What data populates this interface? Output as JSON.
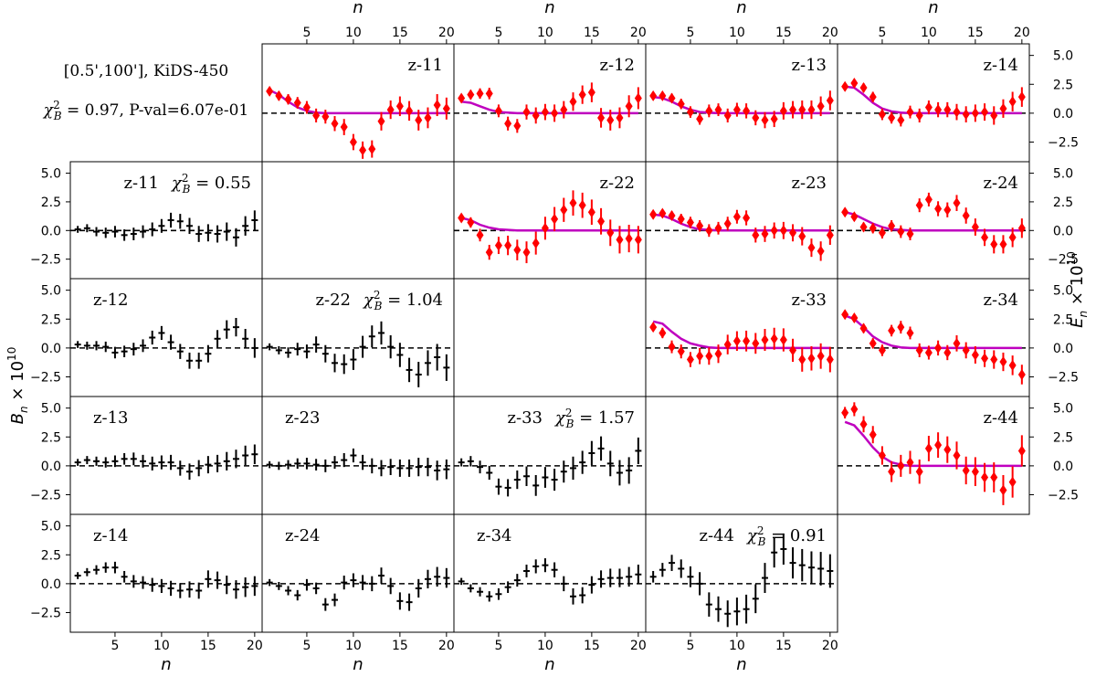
{
  "header": {
    "line1": "[0.5',100'],  KiDS-450",
    "line2_prefix": "χ",
    "line2_sup": "2",
    "line2_sub": "B",
    "line2_rest": " = 0.97, P-val=6.07e-01"
  },
  "axis_labels": {
    "n": "n",
    "e_prefix": "E",
    "e_sub": "n",
    "e_rest": " × 10",
    "e_sup": "10",
    "b_prefix": "B",
    "b_sub": "n",
    "b_rest": " × 10",
    "b_sup": "10"
  },
  "chart_data": {
    "type": "scatter",
    "x": [
      1,
      2,
      3,
      4,
      5,
      6,
      7,
      8,
      9,
      10,
      11,
      12,
      13,
      14,
      15,
      16,
      17,
      18,
      19,
      20
    ],
    "xlim": [
      0.2,
      20.8
    ],
    "xticks": [
      5,
      10,
      15,
      20
    ],
    "ylim": [
      -4.2,
      6.0
    ],
    "yticks": [
      -2.5,
      0.0,
      2.5,
      5.0
    ],
    "ytick_labels": [
      "−2.5",
      "0.0",
      "2.5",
      "5.0"
    ],
    "colors": {
      "E": "#ff0000",
      "B": "#000000",
      "model": "#bf00bf",
      "zero": "#000000"
    },
    "E_modes": [
      {
        "label": "z-11",
        "values": [
          1.9,
          1.5,
          1.2,
          0.9,
          0.5,
          -0.2,
          -0.3,
          -0.9,
          -1.2,
          -2.5,
          -3.2,
          -3.1,
          -0.7,
          0.3,
          0.6,
          0.2,
          -0.6,
          -0.4,
          0.7,
          0.4
        ],
        "errors": [
          0.35,
          0.4,
          0.45,
          0.5,
          0.55,
          0.6,
          0.6,
          0.65,
          0.7,
          0.7,
          0.75,
          0.75,
          0.8,
          0.8,
          0.85,
          0.85,
          0.9,
          0.9,
          0.95,
          0.95
        ],
        "model": [
          2.0,
          1.6,
          1.0,
          0.5,
          0.2,
          0.05,
          0,
          0,
          0,
          0,
          0,
          0,
          0,
          0,
          0,
          0,
          0,
          0,
          0,
          0
        ]
      },
      {
        "label": "z-12",
        "values": [
          1.3,
          1.6,
          1.7,
          1.7,
          0.2,
          -0.9,
          -1.1,
          0.1,
          -0.2,
          0.1,
          0.0,
          0.3,
          1.0,
          1.6,
          1.8,
          -0.4,
          -0.6,
          -0.4,
          0.6,
          1.3
        ],
        "errors": [
          0.35,
          0.4,
          0.45,
          0.5,
          0.55,
          0.6,
          0.6,
          0.65,
          0.7,
          0.7,
          0.75,
          0.75,
          0.8,
          0.8,
          0.85,
          0.85,
          0.9,
          0.9,
          0.95,
          0.95
        ],
        "model": [
          1.0,
          0.9,
          0.6,
          0.3,
          0.1,
          0.05,
          0,
          0,
          0,
          0,
          0,
          0,
          0,
          0,
          0,
          0,
          0,
          0,
          0,
          0
        ]
      },
      {
        "label": "z-13",
        "values": [
          1.5,
          1.5,
          1.3,
          0.8,
          0.1,
          -0.5,
          0.2,
          0.3,
          -0.2,
          0.3,
          0.2,
          -0.4,
          -0.6,
          -0.5,
          0.2,
          0.3,
          0.3,
          0.3,
          0.6,
          1.1
        ],
        "errors": [
          0.3,
          0.35,
          0.4,
          0.45,
          0.5,
          0.5,
          0.55,
          0.55,
          0.6,
          0.6,
          0.65,
          0.65,
          0.7,
          0.7,
          0.75,
          0.75,
          0.8,
          0.8,
          0.85,
          0.85
        ],
        "model": [
          1.4,
          1.3,
          1.0,
          0.6,
          0.3,
          0.1,
          0.05,
          0,
          0,
          0,
          0,
          0,
          0,
          0,
          0,
          0,
          0,
          0,
          0,
          0
        ]
      },
      {
        "label": "z-14",
        "values": [
          2.3,
          2.6,
          2.2,
          1.4,
          -0.1,
          -0.4,
          -0.6,
          0.1,
          -0.2,
          0.5,
          0.3,
          0.3,
          0.1,
          -0.1,
          0.0,
          0.1,
          -0.2,
          0.4,
          1.0,
          1.4
        ],
        "errors": [
          0.3,
          0.35,
          0.4,
          0.45,
          0.5,
          0.5,
          0.55,
          0.55,
          0.6,
          0.6,
          0.65,
          0.65,
          0.7,
          0.7,
          0.75,
          0.75,
          0.8,
          0.8,
          0.85,
          0.85
        ],
        "model": [
          2.3,
          2.2,
          1.6,
          0.9,
          0.4,
          0.15,
          0.05,
          0,
          0,
          0,
          0,
          0,
          0,
          0,
          0,
          0,
          0,
          0,
          0,
          0
        ]
      },
      {
        "label": "z-22",
        "values": [
          1.1,
          0.7,
          -0.4,
          -1.9,
          -1.3,
          -1.3,
          -1.7,
          -1.9,
          -1.1,
          0.2,
          1.0,
          1.8,
          2.4,
          2.2,
          1.6,
          0.8,
          -0.2,
          -0.8,
          -0.7,
          -0.8
        ],
        "errors": [
          0.35,
          0.45,
          0.55,
          0.65,
          0.75,
          0.85,
          0.9,
          0.95,
          1.0,
          1.0,
          1.05,
          1.05,
          1.1,
          1.1,
          1.1,
          1.15,
          1.15,
          1.2,
          1.2,
          1.2
        ],
        "model": [
          1.1,
          0.9,
          0.5,
          0.25,
          0.1,
          0.05,
          0,
          0,
          0,
          0,
          0,
          0,
          0,
          0,
          0,
          0,
          0,
          0,
          0,
          0
        ]
      },
      {
        "label": "z-23",
        "values": [
          1.4,
          1.5,
          1.3,
          1.0,
          0.7,
          0.4,
          0.0,
          0.2,
          0.6,
          1.2,
          1.1,
          -0.4,
          -0.3,
          0.0,
          0.0,
          -0.2,
          -0.5,
          -1.5,
          -1.8,
          -0.4
        ],
        "errors": [
          0.3,
          0.35,
          0.4,
          0.45,
          0.5,
          0.5,
          0.55,
          0.55,
          0.6,
          0.6,
          0.65,
          0.65,
          0.7,
          0.7,
          0.75,
          0.75,
          0.8,
          0.8,
          0.85,
          0.85
        ],
        "model": [
          1.4,
          1.3,
          1.0,
          0.6,
          0.3,
          0.1,
          0.05,
          0,
          0,
          0,
          0,
          0,
          0,
          0,
          0,
          0,
          0,
          0,
          0,
          0
        ]
      },
      {
        "label": "z-24",
        "values": [
          1.6,
          1.2,
          0.3,
          0.2,
          -0.2,
          0.4,
          -0.1,
          -0.3,
          2.2,
          2.7,
          1.9,
          1.8,
          2.4,
          1.3,
          0.3,
          -0.6,
          -1.2,
          -1.2,
          -0.6,
          0.2
        ],
        "errors": [
          0.3,
          0.35,
          0.4,
          0.45,
          0.5,
          0.5,
          0.55,
          0.55,
          0.6,
          0.6,
          0.65,
          0.65,
          0.7,
          0.7,
          0.75,
          0.75,
          0.8,
          0.8,
          0.85,
          0.85
        ],
        "model": [
          1.6,
          1.4,
          1.0,
          0.6,
          0.3,
          0.1,
          0.05,
          0,
          0,
          0,
          0,
          0,
          0,
          0,
          0,
          0,
          0,
          0,
          0,
          0
        ]
      },
      {
        "label": "z-33",
        "values": [
          1.8,
          1.3,
          0.1,
          -0.3,
          -1.0,
          -0.7,
          -0.7,
          -0.5,
          0.3,
          0.6,
          0.6,
          0.4,
          0.7,
          0.8,
          0.7,
          -0.2,
          -1.0,
          -0.9,
          -0.7,
          -1.0
        ],
        "errors": [
          0.35,
          0.45,
          0.55,
          0.6,
          0.65,
          0.7,
          0.75,
          0.8,
          0.85,
          0.85,
          0.9,
          0.9,
          0.95,
          0.95,
          1.0,
          1.0,
          1.05,
          1.05,
          1.1,
          1.1
        ],
        "model": [
          2.3,
          2.1,
          1.4,
          0.8,
          0.4,
          0.2,
          0.05,
          0,
          0,
          0,
          0,
          0,
          0,
          0,
          0,
          0,
          0,
          0,
          0,
          0
        ]
      },
      {
        "label": "z-34",
        "values": [
          2.9,
          2.6,
          1.7,
          0.4,
          -0.2,
          1.5,
          1.8,
          1.3,
          -0.2,
          -0.4,
          0.0,
          -0.4,
          0.4,
          -0.2,
          -0.6,
          -0.9,
          -1.0,
          -1.2,
          -1.5,
          -2.3
        ],
        "errors": [
          0.3,
          0.35,
          0.4,
          0.45,
          0.5,
          0.5,
          0.55,
          0.55,
          0.6,
          0.6,
          0.65,
          0.65,
          0.7,
          0.7,
          0.75,
          0.75,
          0.8,
          0.8,
          0.85,
          0.85
        ],
        "model": [
          2.8,
          2.5,
          1.8,
          1.0,
          0.5,
          0.2,
          0.05,
          0,
          0,
          0,
          0,
          0,
          0,
          0,
          0,
          0,
          0,
          0,
          0,
          0
        ]
      },
      {
        "label": "z-44",
        "values": [
          4.6,
          4.9,
          3.6,
          2.7,
          0.9,
          -0.5,
          0.0,
          0.3,
          -0.5,
          1.5,
          1.8,
          1.4,
          0.9,
          -0.4,
          -0.5,
          -1.0,
          -1.0,
          -2.1,
          -1.4,
          1.3
        ],
        "errors": [
          0.5,
          0.6,
          0.7,
          0.75,
          0.8,
          0.9,
          0.95,
          1.0,
          1.05,
          1.1,
          1.1,
          1.15,
          1.2,
          1.2,
          1.25,
          1.25,
          1.3,
          1.3,
          1.35,
          1.35
        ],
        "model": [
          3.8,
          3.5,
          2.6,
          1.6,
          0.8,
          0.3,
          0.1,
          0,
          0,
          0,
          0,
          0,
          0,
          0,
          0,
          0,
          0,
          0,
          0,
          0
        ]
      }
    ],
    "B_modes": [
      {
        "label": "z-11",
        "chi2": "0.55",
        "values": [
          0.1,
          0.2,
          -0.1,
          -0.2,
          -0.1,
          -0.4,
          -0.3,
          -0.1,
          0.1,
          0.4,
          0.9,
          0.8,
          0.4,
          -0.3,
          -0.2,
          -0.3,
          -0.1,
          -0.6,
          0.4,
          0.9
        ],
        "errors": [
          0.3,
          0.35,
          0.4,
          0.45,
          0.5,
          0.5,
          0.55,
          0.55,
          0.6,
          0.6,
          0.65,
          0.65,
          0.7,
          0.7,
          0.75,
          0.75,
          0.8,
          0.8,
          0.85,
          0.85
        ]
      },
      {
        "label": "z-12",
        "chi2": "",
        "values": [
          0.3,
          0.2,
          0.2,
          0.1,
          -0.4,
          -0.3,
          -0.1,
          0.2,
          0.9,
          1.3,
          0.5,
          -0.3,
          -1.1,
          -1.1,
          -0.5,
          0.8,
          1.6,
          1.8,
          0.8,
          0.0
        ],
        "errors": [
          0.3,
          0.35,
          0.4,
          0.45,
          0.5,
          0.5,
          0.55,
          0.55,
          0.6,
          0.6,
          0.65,
          0.65,
          0.7,
          0.7,
          0.75,
          0.75,
          0.8,
          0.8,
          0.85,
          0.85
        ]
      },
      {
        "label": "z-13",
        "chi2": "",
        "values": [
          0.3,
          0.5,
          0.4,
          0.3,
          0.4,
          0.6,
          0.6,
          0.4,
          0.2,
          0.3,
          0.3,
          -0.2,
          -0.5,
          -0.2,
          0.1,
          0.2,
          0.4,
          0.6,
          0.9,
          1.0
        ],
        "errors": [
          0.3,
          0.35,
          0.4,
          0.45,
          0.5,
          0.5,
          0.55,
          0.55,
          0.6,
          0.6,
          0.65,
          0.65,
          0.7,
          0.7,
          0.75,
          0.75,
          0.8,
          0.8,
          0.85,
          0.85
        ]
      },
      {
        "label": "z-14",
        "chi2": "",
        "values": [
          0.7,
          1.0,
          1.2,
          1.4,
          1.4,
          0.6,
          0.2,
          0.1,
          -0.1,
          -0.2,
          -0.4,
          -0.6,
          -0.5,
          -0.6,
          0.4,
          0.3,
          -0.1,
          -0.5,
          -0.3,
          -0.2
        ],
        "errors": [
          0.3,
          0.35,
          0.4,
          0.45,
          0.5,
          0.5,
          0.55,
          0.55,
          0.6,
          0.6,
          0.65,
          0.65,
          0.7,
          0.7,
          0.75,
          0.75,
          0.8,
          0.8,
          0.85,
          0.85
        ]
      },
      {
        "label": "z-22",
        "chi2": "1.04",
        "values": [
          0.1,
          -0.2,
          -0.4,
          -0.1,
          -0.3,
          0.3,
          -0.5,
          -1.3,
          -1.4,
          -1.0,
          0.1,
          1.0,
          1.3,
          0.1,
          -0.6,
          -1.9,
          -2.3,
          -1.3,
          -0.8,
          -1.7
        ],
        "errors": [
          0.3,
          0.35,
          0.45,
          0.55,
          0.6,
          0.7,
          0.75,
          0.8,
          0.85,
          0.9,
          0.95,
          0.95,
          1.0,
          1.0,
          1.05,
          1.05,
          1.1,
          1.1,
          1.15,
          1.15
        ]
      },
      {
        "label": "z-23",
        "chi2": "",
        "values": [
          0.1,
          0.0,
          0.1,
          0.2,
          0.2,
          0.1,
          0.0,
          0.3,
          0.5,
          0.9,
          0.3,
          0.0,
          -0.2,
          -0.1,
          -0.2,
          -0.2,
          -0.1,
          -0.1,
          -0.4,
          -0.3
        ],
        "errors": [
          0.3,
          0.35,
          0.4,
          0.45,
          0.5,
          0.5,
          0.55,
          0.55,
          0.6,
          0.6,
          0.65,
          0.65,
          0.7,
          0.7,
          0.75,
          0.75,
          0.8,
          0.8,
          0.85,
          0.85
        ]
      },
      {
        "label": "z-33",
        "chi2": "1.57",
        "values": [
          0.3,
          0.4,
          -0.1,
          -0.6,
          -1.8,
          -1.9,
          -1.2,
          -0.9,
          -1.7,
          -1.0,
          -1.2,
          -0.5,
          -0.2,
          0.3,
          1.1,
          1.5,
          0.2,
          -0.6,
          -0.4,
          1.3
        ],
        "errors": [
          0.35,
          0.45,
          0.55,
          0.6,
          0.7,
          0.75,
          0.8,
          0.85,
          0.9,
          0.9,
          0.95,
          0.95,
          1.0,
          1.0,
          1.05,
          1.05,
          1.1,
          1.1,
          1.15,
          1.15
        ]
      },
      {
        "label": "z-24",
        "chi2": "",
        "values": [
          0.1,
          -0.2,
          -0.6,
          -1.0,
          -0.1,
          -0.4,
          -1.8,
          -1.4,
          0.1,
          0.3,
          0.1,
          0.0,
          0.7,
          -0.2,
          -1.5,
          -1.6,
          -0.4,
          0.4,
          0.6,
          0.5
        ],
        "errors": [
          0.3,
          0.35,
          0.4,
          0.45,
          0.5,
          0.5,
          0.55,
          0.55,
          0.6,
          0.6,
          0.65,
          0.65,
          0.7,
          0.7,
          0.75,
          0.75,
          0.8,
          0.8,
          0.85,
          0.85
        ]
      },
      {
        "label": "z-34",
        "chi2": "",
        "values": [
          0.2,
          -0.4,
          -0.7,
          -1.1,
          -0.9,
          -0.3,
          0.3,
          1.1,
          1.5,
          1.6,
          1.2,
          0.0,
          -1.1,
          -1.0,
          -0.1,
          0.4,
          0.5,
          0.5,
          0.6,
          0.8
        ],
        "errors": [
          0.3,
          0.35,
          0.4,
          0.45,
          0.5,
          0.5,
          0.55,
          0.55,
          0.6,
          0.6,
          0.65,
          0.65,
          0.7,
          0.7,
          0.75,
          0.75,
          0.8,
          0.8,
          0.85,
          0.85
        ]
      },
      {
        "label": "z-44",
        "chi2": "0.91",
        "values": [
          0.6,
          1.2,
          1.8,
          1.3,
          0.6,
          0.0,
          -1.8,
          -2.2,
          -2.6,
          -2.4,
          -2.2,
          -1.3,
          0.5,
          2.7,
          3.0,
          1.8,
          1.6,
          1.4,
          1.3,
          1.1
        ],
        "errors": [
          0.5,
          0.6,
          0.7,
          0.8,
          0.9,
          1.0,
          1.05,
          1.1,
          1.15,
          1.2,
          1.25,
          1.25,
          1.3,
          1.3,
          1.35,
          1.35,
          1.4,
          1.4,
          1.45,
          1.45
        ]
      }
    ]
  }
}
